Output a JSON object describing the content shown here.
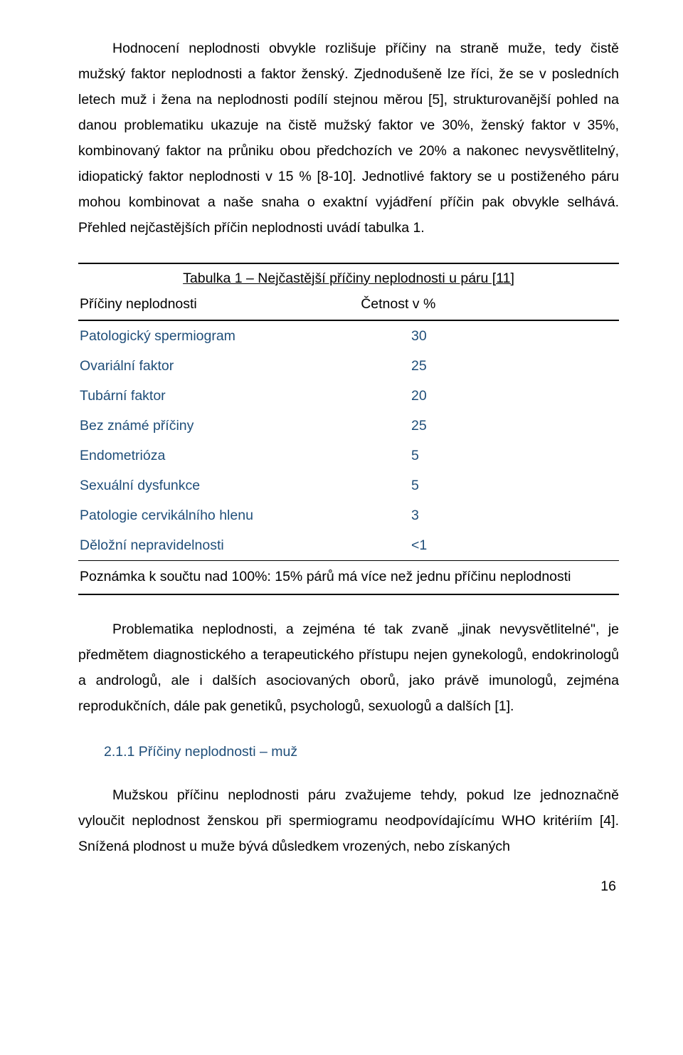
{
  "paragraphs": {
    "p1": "Hodnocení neplodnosti obvykle rozlišuje příčiny na straně muže, tedy čistě mužský faktor neplodnosti a faktor ženský. Zjednodušeně lze říci, že se v posledních letech muž i žena na neplodnosti podílí stejnou měrou [5], strukturovanější pohled na danou problematiku ukazuje na čistě mužský faktor ve 30%, ženský faktor v 35%, kombinovaný faktor na průniku obou předchozích ve 20% a nakonec nevysvětlitelný, idiopatický faktor neplodnosti v 15 % [8-10]. Jednotlivé faktory se u postiženého páru mohou kombinovat a naše snaha o exaktní vyjádření příčin pak obvykle selhává. Přehled nejčastějších příčin neplodnosti uvádí tabulka 1.",
    "p2": "Problematika neplodnosti, a zejména té tak zvaně „jinak nevysvětlitelné\", je předmětem diagnostického a terapeutického přístupu nejen gynekologů, endokrinologů a andrologů, ale i dalších asociovaných oborů, jako právě imunologů, zejména reprodukčních, dále pak genetiků, psychologů, sexuologů a dalších [1].",
    "p3": "Mužskou příčinu neplodnosti páru zvažujeme tehdy, pokud lze jednoznačně vyloučit neplodnost ženskou při spermiogramu neodpovídajícímu WHO kritériím [4]. Snížená plodnost u muže bývá důsledkem vrozených, nebo získaných"
  },
  "table": {
    "title": "Tabulka 1 – Nejčastější příčiny neplodnosti u páru [11]",
    "col1_header": "Příčiny neplodnosti",
    "col2_header": "Četnost v %",
    "rows": [
      {
        "label": "Patologický spermiogram",
        "value": "30"
      },
      {
        "label": "Ovariální faktor",
        "value": "25"
      },
      {
        "label": "Tubární faktor",
        "value": "20"
      },
      {
        "label": "Bez známé příčiny",
        "value": "25"
      },
      {
        "label": "Endometrióza",
        "value": "5"
      },
      {
        "label": "Sexuální dysfunkce",
        "value": "5"
      },
      {
        "label": "Patologie cervikálního hlenu",
        "value": "3"
      },
      {
        "label": "Děložní nepravidelnosti",
        "value": "<1"
      }
    ],
    "note": "Poznámka k součtu nad 100%: 15% párů má více než jednu příčinu neplodnosti"
  },
  "section_heading": "2.1.1  Příčiny neplodnosti – muž",
  "page_number": "16",
  "colors": {
    "body_text": "#000000",
    "accent_text": "#1f4e79",
    "background": "#ffffff",
    "rule": "#000000"
  }
}
